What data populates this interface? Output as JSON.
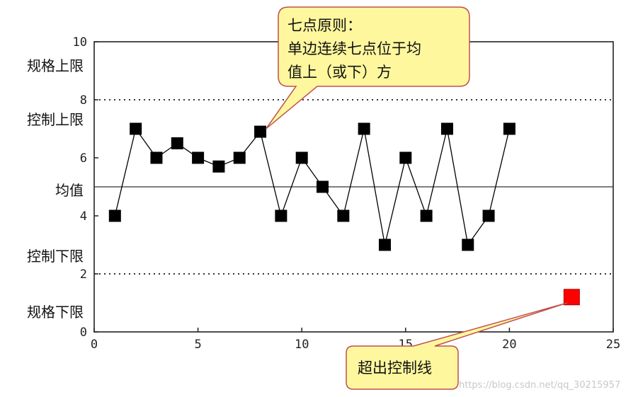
{
  "chart_data": {
    "type": "line",
    "xlim": [
      0,
      25
    ],
    "ylim": [
      0,
      10
    ],
    "x_ticks": [
      "0",
      "5",
      "10",
      "15",
      "20",
      "25"
    ],
    "y_ticks": [
      "0",
      "2",
      "4",
      "6",
      "8",
      "10"
    ],
    "series": [
      {
        "x": [
          1,
          2,
          3,
          4,
          5,
          6,
          7,
          8,
          9,
          10,
          11,
          12,
          13,
          14,
          15,
          16,
          17,
          18,
          19,
          20
        ],
        "y": [
          4,
          7,
          6,
          6.5,
          6,
          5.7,
          6,
          6.9,
          4,
          6,
          5,
          4,
          7,
          3,
          6,
          4,
          7,
          3,
          4,
          7
        ],
        "color": "#000000"
      }
    ],
    "outlier_point": {
      "x": 23,
      "y": 1.2,
      "color": "#ff0000"
    },
    "reference_lines": [
      {
        "y": 8,
        "style": "dotted",
        "label": "控制上限"
      },
      {
        "y": 5,
        "style": "solid",
        "label": "均值"
      },
      {
        "y": 2,
        "style": "dotted",
        "label": "控制下限"
      }
    ],
    "spec_labels": {
      "upper": "规格上限",
      "lower": "规格下限"
    },
    "grid": false
  },
  "callouts": {
    "top": {
      "lines": [
        "七点原则：",
        "单边连续七点位于均",
        "值上（或下）方"
      ],
      "fill": "#fef79e",
      "border": "#c0504d"
    },
    "bottom": {
      "lines": [
        "超出控制线"
      ],
      "fill": "#fef79e",
      "border": "#c0504d"
    }
  },
  "watermark": "https://blog.csdn.net/qq_30215957"
}
